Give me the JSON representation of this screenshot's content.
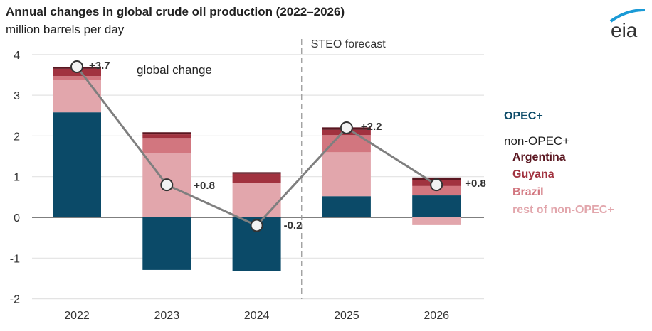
{
  "chart_data": {
    "type": "bar",
    "stacked": true,
    "title": "Annual changes in global crude oil production (2022–2026)",
    "ylabel": "million barrels per day",
    "ylim": [
      -2,
      4
    ],
    "yticks": [
      4,
      3,
      2,
      1,
      0,
      -1,
      -2
    ],
    "grid": true,
    "legend_placement": "right",
    "categories": [
      "2022",
      "2023",
      "2024",
      "2025",
      "2026"
    ],
    "forecast_label": "STEO forecast",
    "forecast_start": "2025",
    "legend_group_label": "non-OPEC+",
    "series": [
      {
        "name": "OPEC+",
        "color": "#0b4a68",
        "values": [
          2.58,
          -1.29,
          -1.31,
          0.52,
          0.54
        ]
      },
      {
        "name": "rest of non-OPEC+",
        "color": "#e2a6ac",
        "values": [
          0.79,
          1.57,
          0.84,
          1.08,
          -0.19
        ]
      },
      {
        "name": "Brazil",
        "color": "#d2767f",
        "values": [
          0.1,
          0.38,
          0.0,
          0.42,
          0.23
        ]
      },
      {
        "name": "Guyana",
        "color": "#a1323f",
        "values": [
          0.18,
          0.09,
          0.23,
          0.13,
          0.15
        ]
      },
      {
        "name": "Argentina",
        "color": "#5a1620",
        "values": [
          0.05,
          0.05,
          0.04,
          0.06,
          0.06
        ]
      }
    ],
    "line": {
      "values": [
        3.7,
        0.8,
        -0.2,
        2.2,
        0.8
      ],
      "labels": [
        "+3.7",
        "+0.8",
        "-0.2",
        "+2.2",
        "+0.8"
      ],
      "annotation": "global change",
      "color": "#7f7f7f"
    },
    "legend_colors": {
      "OPEC+": "#0b4a68",
      "non-OPEC+": "#222222",
      "Argentina": "#5a1620",
      "Guyana": "#a1323f",
      "Brazil": "#d2767f",
      "rest of non-OPEC+": "#e2a6ac"
    }
  },
  "logo": {
    "text": "eia",
    "accent": "#1a9ad6"
  }
}
